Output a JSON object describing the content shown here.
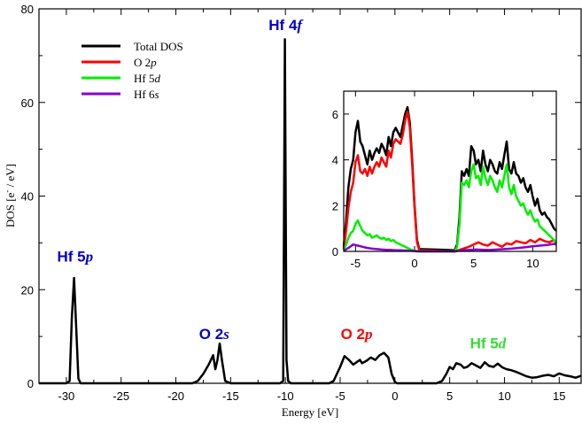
{
  "chart_data": {
    "type": "line",
    "xlabel": "Energy [eV]",
    "ylabel": {
      "base": "DOS [e",
      "sup": "-",
      "rest": " / eV]"
    },
    "xlim": [
      -32.5,
      17
    ],
    "ylim": [
      0,
      80
    ],
    "xticks": [
      -30,
      -25,
      -20,
      -15,
      -10,
      -5,
      0,
      5,
      10,
      15
    ],
    "yticks": [
      0,
      20,
      40,
      60,
      80
    ],
    "grid": false,
    "legend": {
      "placement": "top-left",
      "entries": [
        {
          "key": "total",
          "parts": [
            [
              "Total DOS",
              false
            ]
          ]
        },
        {
          "key": "o2p",
          "parts": [
            [
              "O 2",
              false
            ],
            [
              "p",
              true
            ]
          ]
        },
        {
          "key": "hf5d",
          "parts": [
            [
              "Hf 5",
              false
            ],
            [
              "d",
              true
            ]
          ]
        },
        {
          "key": "hf6s",
          "parts": [
            [
              "Hf 6",
              false
            ],
            [
              "s",
              true
            ]
          ]
        }
      ]
    },
    "annotations": [
      {
        "base": "Hf 5",
        "it": "p",
        "color": "#0000cc",
        "x": -29.2,
        "y": 26
      },
      {
        "base": "O 2",
        "it": "s",
        "color": "#0000cc",
        "x": -16.5,
        "y": 9.5
      },
      {
        "base": "Hf 4",
        "it": "f",
        "color": "#0000cc",
        "x": -10,
        "y": 75.5
      },
      {
        "base": "O 2",
        "it": "p",
        "color": "#ff0000",
        "x": -3.5,
        "y": 9.5
      },
      {
        "base": "Hf 5",
        "it": "d",
        "color": "#33dd33",
        "x": 8.5,
        "y": 7.5
      }
    ],
    "series": [
      {
        "key": "total",
        "color": "#000000",
        "x": [
          -32.5,
          -30.0,
          -29.7,
          -29.5,
          -29.3,
          -29.1,
          -28.9,
          -28.7,
          -28.5,
          -18.5,
          -18.0,
          -17.5,
          -17.0,
          -16.6,
          -16.4,
          -16.2,
          -16.0,
          -15.8,
          -15.5,
          -15.0,
          -10.5,
          -10.2,
          -10.05,
          -9.9,
          -9.75,
          -9.5,
          -6.0,
          -5.6,
          -5.3,
          -5.0,
          -4.6,
          -4.2,
          -3.8,
          -3.5,
          -3.2,
          -3.0,
          -2.6,
          -2.2,
          -1.8,
          -1.4,
          -1.0,
          -0.6,
          -0.3,
          0.0,
          0.2,
          0.4,
          3.8,
          4.3,
          4.7,
          5.0,
          5.3,
          5.6,
          6.0,
          6.3,
          6.6,
          7.0,
          7.4,
          7.8,
          8.2,
          8.6,
          9.0,
          9.4,
          9.8,
          10.2,
          10.6,
          11.0,
          11.5,
          12.0,
          12.5,
          13.0,
          13.5,
          14.0,
          14.5,
          15.0,
          15.5,
          16.0,
          16.5,
          17.0
        ],
        "y": [
          0,
          0,
          0.5,
          14,
          22.5,
          12,
          1,
          0,
          0,
          0,
          0.5,
          2,
          4,
          6,
          3,
          5,
          8.5,
          5,
          0.5,
          0,
          0,
          0.5,
          73.5,
          5,
          0.5,
          0,
          0,
          0.5,
          2,
          3.5,
          5.8,
          5,
          4,
          4.5,
          5,
          4.3,
          4.8,
          5.5,
          5,
          6,
          6.5,
          5.5,
          2,
          0.3,
          0,
          0,
          0,
          0.5,
          2,
          3.5,
          3,
          4.3,
          4,
          3.3,
          3.5,
          4.3,
          3.8,
          3.3,
          4.5,
          3.7,
          3.5,
          4.2,
          3.4,
          3,
          2.8,
          2.5,
          2,
          1.5,
          1.2,
          1.3,
          1.6,
          1.8,
          1.5,
          2.1,
          1.7,
          1.5,
          1.2,
          1.6
        ]
      }
    ],
    "inset": {
      "xlim": [
        -6,
        12
      ],
      "ylim": [
        0,
        7
      ],
      "xticks": [
        -5,
        0,
        5,
        10
      ],
      "yticks": [
        0,
        2,
        4,
        6
      ],
      "series": [
        {
          "key": "total",
          "color": "#000000",
          "x": [
            -6.0,
            -5.8,
            -5.6,
            -5.4,
            -5.2,
            -5.0,
            -4.8,
            -4.6,
            -4.4,
            -4.2,
            -4.0,
            -3.8,
            -3.6,
            -3.4,
            -3.2,
            -3.0,
            -2.8,
            -2.6,
            -2.4,
            -2.2,
            -2.0,
            -1.8,
            -1.6,
            -1.4,
            -1.2,
            -1.0,
            -0.8,
            -0.6,
            -0.4,
            -0.2,
            0.0,
            0.2,
            0.4,
            3.4,
            3.6,
            3.8,
            4.0,
            4.2,
            4.4,
            4.6,
            4.8,
            5.0,
            5.2,
            5.4,
            5.6,
            5.8,
            6.0,
            6.2,
            6.4,
            6.6,
            6.8,
            7.0,
            7.2,
            7.4,
            7.6,
            7.8,
            8.0,
            8.2,
            8.4,
            8.6,
            8.8,
            9.0,
            9.2,
            9.4,
            9.6,
            9.8,
            10.0,
            10.2,
            10.4,
            10.6,
            10.8,
            11.0,
            11.2,
            11.4,
            11.6,
            11.8,
            12.0
          ],
          "y": [
            0.2,
            1.3,
            2.8,
            3.6,
            4.0,
            5.2,
            5.7,
            4.8,
            4.6,
            4.2,
            3.8,
            4.4,
            4.0,
            4.3,
            4.5,
            4.3,
            4.7,
            4.5,
            4.2,
            5.0,
            4.6,
            5.2,
            5.4,
            5.2,
            5.0,
            5.5,
            6.0,
            6.3,
            5.6,
            4.0,
            2.0,
            0.5,
            0.1,
            0.05,
            0.3,
            1.5,
            3.5,
            3.3,
            3.6,
            3.3,
            4.6,
            4.4,
            3.8,
            4.0,
            3.5,
            4.4,
            3.8,
            3.5,
            4.0,
            3.8,
            3.5,
            3.4,
            3.9,
            3.6,
            4.2,
            4.8,
            3.6,
            3.4,
            3.9,
            3.4,
            3.3,
            3.0,
            3.2,
            2.8,
            2.6,
            2.9,
            2.4,
            2.0,
            2.3,
            1.8,
            1.6,
            1.7,
            1.5,
            1.4,
            1.2,
            1.0,
            0.9
          ]
        },
        {
          "key": "o2p",
          "color": "#ff0000",
          "x": [
            -6.0,
            -5.8,
            -5.6,
            -5.4,
            -5.2,
            -5.0,
            -4.8,
            -4.6,
            -4.4,
            -4.2,
            -4.0,
            -3.8,
            -3.6,
            -3.4,
            -3.2,
            -3.0,
            -2.8,
            -2.6,
            -2.4,
            -2.2,
            -2.0,
            -1.8,
            -1.6,
            -1.4,
            -1.2,
            -1.0,
            -0.8,
            -0.6,
            -0.4,
            -0.2,
            0.0,
            0.2,
            0.4,
            3.4,
            4.0,
            4.6,
            5.0,
            5.4,
            5.8,
            6.2,
            6.6,
            7.0,
            7.4,
            7.8,
            8.2,
            8.6,
            9.0,
            9.4,
            9.8,
            10.2,
            10.6,
            11.0,
            11.4,
            11.8,
            12.0
          ],
          "y": [
            0.1,
            0.9,
            1.9,
            2.6,
            3.0,
            3.9,
            4.2,
            3.5,
            3.4,
            3.6,
            3.3,
            3.7,
            3.4,
            3.7,
            3.9,
            3.7,
            4.1,
            3.9,
            3.7,
            4.4,
            4.1,
            4.7,
            4.9,
            4.8,
            4.7,
            5.1,
            5.7,
            6.1,
            5.4,
            3.8,
            1.9,
            0.4,
            0.05,
            0.0,
            0.1,
            0.2,
            0.3,
            0.4,
            0.3,
            0.25,
            0.4,
            0.3,
            0.2,
            0.35,
            0.3,
            0.45,
            0.4,
            0.35,
            0.5,
            0.4,
            0.55,
            0.45,
            0.4,
            0.5,
            0.35
          ]
        },
        {
          "key": "hf5d",
          "color": "#00ee00",
          "x": [
            -6.0,
            -5.8,
            -5.6,
            -5.4,
            -5.2,
            -5.0,
            -4.8,
            -4.6,
            -4.4,
            -4.2,
            -4.0,
            -3.8,
            -3.6,
            -3.4,
            -3.2,
            -3.0,
            -2.8,
            -2.6,
            -2.4,
            -2.2,
            -2.0,
            -1.8,
            -1.6,
            -1.4,
            -1.2,
            -1.0,
            -0.8,
            -0.6,
            -0.4,
            -0.2,
            0.0,
            0.2,
            3.4,
            3.6,
            3.8,
            4.0,
            4.2,
            4.4,
            4.6,
            4.8,
            5.0,
            5.2,
            5.4,
            5.6,
            5.8,
            6.0,
            6.2,
            6.4,
            6.6,
            6.8,
            7.0,
            7.2,
            7.4,
            7.6,
            7.8,
            8.0,
            8.2,
            8.4,
            8.6,
            8.8,
            9.0,
            9.2,
            9.4,
            9.6,
            9.8,
            10.0,
            10.2,
            10.4,
            10.6,
            10.8,
            11.0,
            11.2,
            11.4,
            11.6,
            11.8,
            12.0
          ],
          "y": [
            0.05,
            0.3,
            0.6,
            0.8,
            0.9,
            1.2,
            1.35,
            1.1,
            0.9,
            0.8,
            0.7,
            0.75,
            0.6,
            0.65,
            0.7,
            0.6,
            0.55,
            0.6,
            0.5,
            0.55,
            0.45,
            0.5,
            0.4,
            0.35,
            0.3,
            0.25,
            0.2,
            0.15,
            0.1,
            0.05,
            0.02,
            0.0,
            0.0,
            0.2,
            1.2,
            3.0,
            2.9,
            3.1,
            2.8,
            3.5,
            3.8,
            3.2,
            3.3,
            2.9,
            3.7,
            3.2,
            2.9,
            3.3,
            3.1,
            2.8,
            2.6,
            3.1,
            2.8,
            3.3,
            3.8,
            2.8,
            2.5,
            2.9,
            2.4,
            2.2,
            2.0,
            2.1,
            1.8,
            1.6,
            1.8,
            1.5,
            1.3,
            1.4,
            1.1,
            1.0,
            0.9,
            0.8,
            0.7,
            0.6,
            0.5,
            0.4
          ]
        },
        {
          "key": "hf6s",
          "color": "#8800cc",
          "x": [
            -6.0,
            -5.6,
            -5.2,
            -4.8,
            -4.4,
            -4.0,
            -3.6,
            -3.2,
            -2.8,
            -2.4,
            -2.0,
            -1.6,
            -1.2,
            -0.8,
            -0.4,
            0.0,
            0.4,
            3.4,
            4.0,
            4.6,
            5.2,
            5.8,
            6.4,
            7.0,
            7.6,
            8.2,
            8.8,
            9.4,
            10.0,
            10.6,
            11.2,
            11.8,
            12.0
          ],
          "y": [
            0.02,
            0.15,
            0.3,
            0.25,
            0.2,
            0.15,
            0.12,
            0.1,
            0.08,
            0.07,
            0.06,
            0.05,
            0.05,
            0.04,
            0.03,
            0.02,
            0.0,
            0.0,
            0.05,
            0.06,
            0.08,
            0.07,
            0.06,
            0.08,
            0.1,
            0.12,
            0.15,
            0.18,
            0.22,
            0.25,
            0.28,
            0.33,
            0.3
          ]
        }
      ]
    }
  }
}
